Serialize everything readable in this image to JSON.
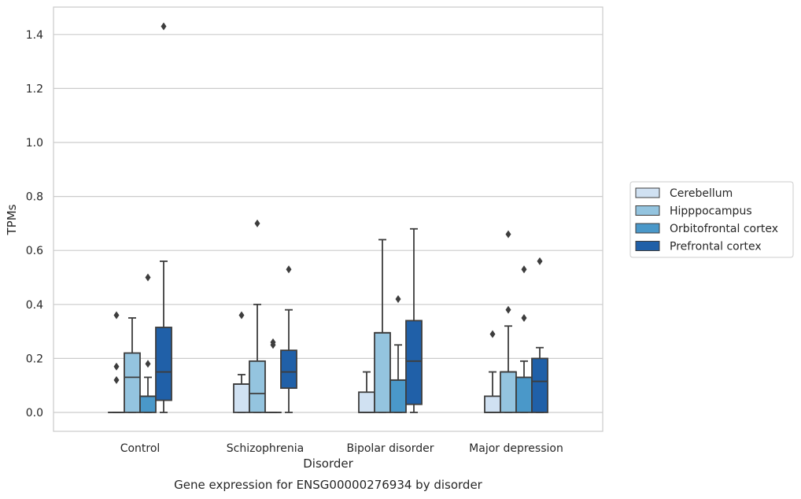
{
  "chart_data": {
    "type": "boxplot",
    "title": "Gene expression for ENSG00000276934 by disorder",
    "xlabel": "Disorder",
    "ylabel": "TPMs",
    "ylim": [
      -0.07,
      1.5
    ],
    "yticks": [
      "0.0",
      "0.2",
      "0.4",
      "0.6",
      "0.8",
      "1.0",
      "1.2",
      "1.4"
    ],
    "grid": "horizontal",
    "legend_position": "right",
    "categories": [
      "Control",
      "Schizophrenia",
      "Bipolar disorder",
      "Major depression"
    ],
    "series": [
      {
        "name": "Cerebellum",
        "color": "#d0e1f2",
        "boxes": [
          {
            "whislo": 0,
            "q1": 0,
            "med": 0,
            "q3": 0,
            "whishi": 0,
            "fliers": [
              0.36,
              0.17,
              0.12
            ]
          },
          {
            "whislo": 0,
            "q1": 0,
            "med": 0.105,
            "q3": 0.105,
            "whishi": 0.14,
            "fliers": [
              0.36
            ]
          },
          {
            "whislo": 0,
            "q1": 0,
            "med": 0,
            "q3": 0.075,
            "whishi": 0.15,
            "fliers": []
          },
          {
            "whislo": 0,
            "q1": 0,
            "med": 0,
            "q3": 0.06,
            "whishi": 0.15,
            "fliers": [
              0.29
            ]
          }
        ]
      },
      {
        "name": "Hipppocampus",
        "color": "#94c4df",
        "boxes": [
          {
            "whislo": 0,
            "q1": 0,
            "med": 0.13,
            "q3": 0.22,
            "whishi": 0.35,
            "fliers": []
          },
          {
            "whislo": 0,
            "q1": 0,
            "med": 0.07,
            "q3": 0.19,
            "whishi": 0.4,
            "fliers": [
              0.7
            ]
          },
          {
            "whislo": 0,
            "q1": 0,
            "med": 0.295,
            "q3": 0.295,
            "whishi": 0.64,
            "fliers": []
          },
          {
            "whislo": 0,
            "q1": 0,
            "med": 0.15,
            "q3": 0.15,
            "whishi": 0.32,
            "fliers": [
              0.66,
              0.38
            ]
          }
        ]
      },
      {
        "name": "Orbitofrontal cortex",
        "color": "#4a98c9",
        "boxes": [
          {
            "whislo": 0,
            "q1": 0,
            "med": 0.06,
            "q3": 0.06,
            "whishi": 0.13,
            "fliers": [
              0.5,
              0.18
            ]
          },
          {
            "whislo": 0,
            "q1": 0,
            "med": 0,
            "q3": 0,
            "whishi": 0,
            "fliers": [
              0.26,
              0.25
            ]
          },
          {
            "whislo": 0,
            "q1": 0,
            "med": 0.12,
            "q3": 0.12,
            "whishi": 0.25,
            "fliers": [
              0.42
            ]
          },
          {
            "whislo": 0,
            "q1": 0,
            "med": 0.13,
            "q3": 0.13,
            "whishi": 0.19,
            "fliers": [
              0.53,
              0.35
            ]
          }
        ]
      },
      {
        "name": "Prefrontal cortex",
        "color": "#2060a8",
        "boxes": [
          {
            "whislo": 0,
            "q1": 0.045,
            "med": 0.15,
            "q3": 0.315,
            "whishi": 0.56,
            "fliers": [
              1.43
            ]
          },
          {
            "whislo": 0,
            "q1": 0.09,
            "med": 0.15,
            "q3": 0.23,
            "whishi": 0.38,
            "fliers": [
              0.53
            ]
          },
          {
            "whislo": 0,
            "q1": 0.03,
            "med": 0.19,
            "q3": 0.34,
            "whishi": 0.68,
            "fliers": []
          },
          {
            "whislo": 0,
            "q1": 0,
            "med": 0.115,
            "q3": 0.2,
            "whishi": 0.24,
            "fliers": [
              0.56
            ]
          }
        ]
      }
    ]
  }
}
